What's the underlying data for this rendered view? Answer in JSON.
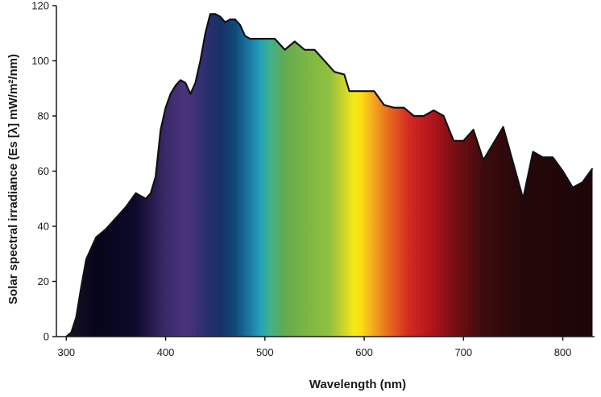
{
  "chart_data": {
    "type": "area",
    "title": "",
    "xlabel": "Wavelength (nm)",
    "ylabel": "Solar spectral irradiance  (Es [λ] mW/m²/nm)",
    "xlim": [
      290,
      832
    ],
    "ylim": [
      0,
      120
    ],
    "x_ticks": [
      300,
      400,
      500,
      600,
      700,
      800
    ],
    "y_ticks": [
      0,
      20,
      40,
      60,
      80,
      100,
      120
    ],
    "fill": "visible-spectrum color gradient (violet to deep red) under the curve",
    "grid": false,
    "series": [
      {
        "x": [
          300,
          305,
          310,
          315,
          320,
          330,
          340,
          350,
          360,
          370,
          380,
          385,
          390,
          395,
          400,
          405,
          410,
          415,
          420,
          425,
          430,
          435,
          440,
          445,
          450,
          455,
          460,
          465,
          470,
          475,
          480,
          485,
          490,
          495,
          500,
          510,
          520,
          530,
          540,
          550,
          560,
          570,
          580,
          585,
          590,
          600,
          610,
          620,
          630,
          640,
          650,
          660,
          670,
          680,
          690,
          700,
          710,
          720,
          740,
          760,
          770,
          780,
          790,
          800,
          810,
          820,
          830
        ],
        "y": [
          0,
          1.5,
          7,
          18,
          28,
          36,
          39,
          43,
          47,
          52,
          50,
          52,
          58,
          75,
          83,
          88,
          91,
          93,
          92,
          88,
          92,
          100,
          110,
          117,
          117,
          116,
          114,
          115,
          115,
          113,
          109,
          108,
          108,
          108,
          108,
          108,
          104,
          107,
          104,
          104,
          100,
          96,
          95,
          89,
          89,
          89,
          89,
          84,
          83,
          83,
          80,
          80,
          82,
          80,
          71,
          71,
          75,
          64,
          76,
          50,
          67,
          65,
          65,
          60,
          54,
          56,
          61
        ]
      }
    ]
  }
}
